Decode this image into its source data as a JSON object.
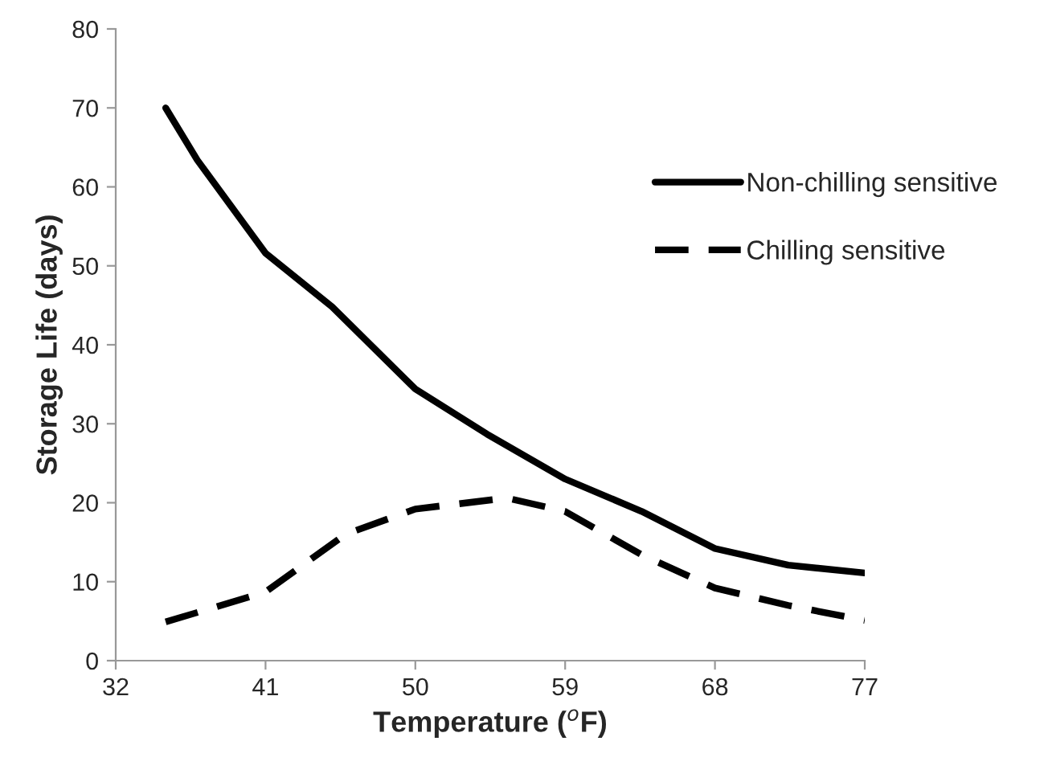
{
  "chart_data": {
    "type": "line",
    "xlabel": "Temperature ($^{o}$F)",
    "ylabel": "Storage Life (days)",
    "xlim": [
      32,
      77
    ],
    "xticks": [
      32,
      41,
      50,
      59,
      68,
      77
    ],
    "ylim": [
      0,
      80
    ],
    "yticks": [
      0,
      10,
      20,
      30,
      40,
      50,
      60,
      70,
      80
    ],
    "grid": false,
    "legend": "right",
    "marker": "none",
    "series": [
      {
        "name": "Non-chilling sensitive",
        "color": "#000000",
        "line_style": "solid",
        "x": [
          35,
          36.9,
          41,
          45,
          50,
          54.3,
          59,
          63.6,
          68,
          72.4,
          77
        ],
        "values": [
          70,
          63.4,
          51.6,
          44.8,
          34.4,
          28.7,
          23,
          18.9,
          14.2,
          12.1,
          11.1
        ]
      },
      {
        "name": "Chilling sensitive",
        "color": "#000000",
        "line_style": "dashed",
        "x": [
          35,
          41,
          45.8,
          50,
          55.5,
          59,
          63.6,
          68,
          72.4,
          77
        ],
        "values": [
          4.9,
          8.7,
          16,
          19.2,
          20.6,
          18.9,
          13.4,
          9.2,
          7,
          5.1
        ]
      }
    ]
  }
}
